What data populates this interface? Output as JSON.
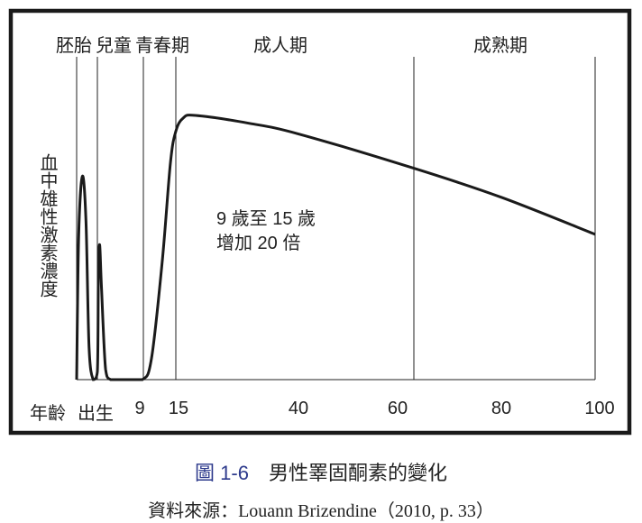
{
  "chart_data": {
    "type": "line",
    "title": "",
    "ylabel": "血中雄性激素濃度",
    "xlabel": "年齡",
    "stages": [
      "胚胎",
      "兒童",
      "青春期",
      "成人期",
      "成熟期"
    ],
    "x_ticks": [
      "出生",
      "9",
      "15",
      "40",
      "60",
      "80",
      "100"
    ],
    "tick_values": [
      0,
      9,
      15,
      40,
      60,
      80,
      100
    ],
    "stage_boundaries": [
      -1,
      0,
      9,
      15,
      63,
      100
    ],
    "ylim": [
      0,
      100
    ],
    "annotation": [
      "9 歲至 15 歲",
      "增加 20 倍"
    ],
    "series": [
      {
        "name": "男性睪固酮",
        "x": [
          -1,
          -0.9,
          -0.72,
          -0.55,
          -0.4,
          -0.2,
          0,
          0.2,
          0.45,
          0.8,
          1.6,
          2.6,
          5,
          8.8,
          10.5,
          12.5,
          14,
          15,
          16.5,
          19,
          30,
          40,
          63,
          80,
          100
        ],
        "y": [
          0,
          55,
          77,
          60,
          12,
          0,
          3,
          40,
          51,
          35,
          4,
          0,
          0,
          0,
          8,
          45,
          82,
          94,
          99,
          100,
          97,
          93,
          80,
          69,
          55
        ]
      }
    ]
  },
  "caption": {
    "number": "圖 1-6",
    "title": "男性睪固酮素的變化"
  },
  "source": "資料來源：Louann Brizendine（2010, p. 33）"
}
